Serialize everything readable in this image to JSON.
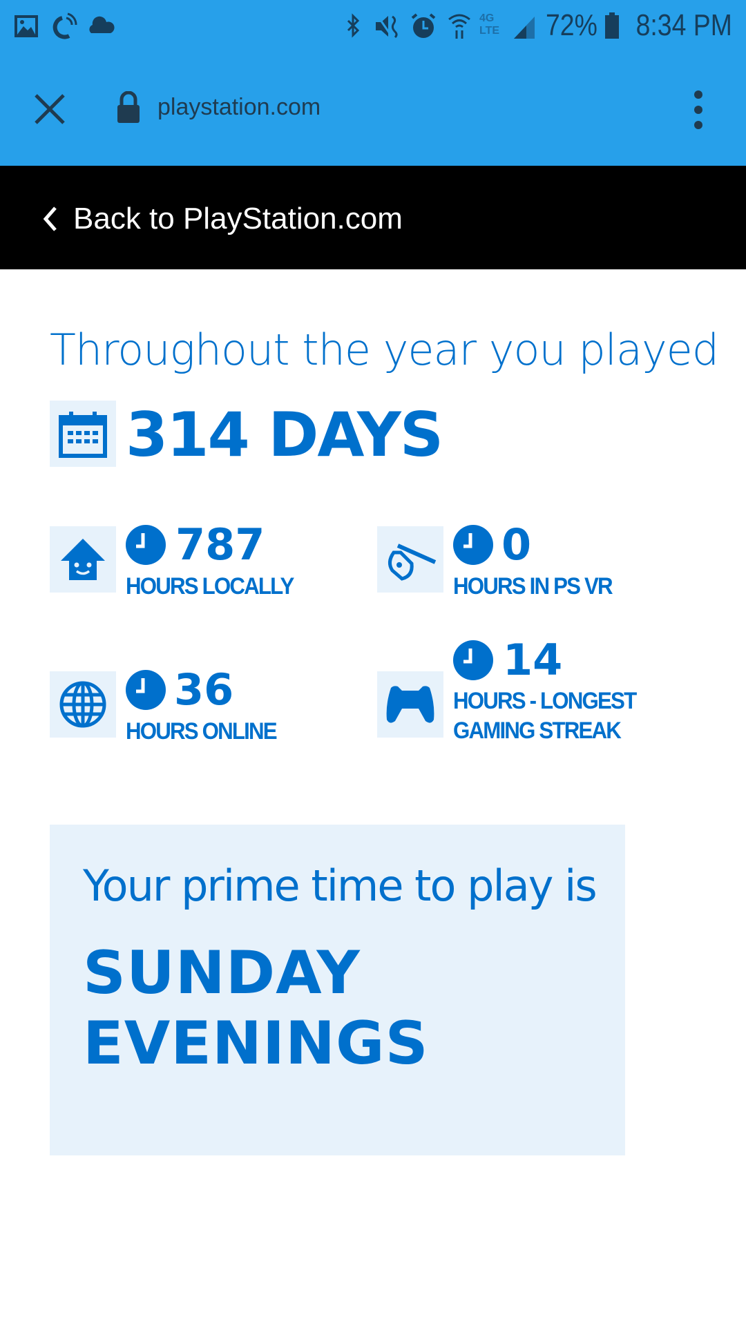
{
  "status_bar": {
    "battery": "72%",
    "time": "8:34 PM",
    "icons": [
      "gallery-icon",
      "sync-icon",
      "cloud-icon",
      "bluetooth-icon",
      "mute-icon",
      "alarm-icon",
      "wifi-icon",
      "lte-icon",
      "signal-icon",
      "battery-icon"
    ]
  },
  "browser": {
    "url": "playstation.com"
  },
  "nav": {
    "back_label": "Back to PlayStation.com"
  },
  "summary": {
    "heading": "Throughout the year you played",
    "days": "314 DAYS"
  },
  "stats": [
    {
      "value": "787",
      "label": "HOURS LOCALLY",
      "icon": "home-icon"
    },
    {
      "value": "0",
      "label": "HOURS IN PS VR",
      "icon": "vr-headset-icon"
    },
    {
      "value": "36",
      "label": "HOURS ONLINE",
      "icon": "globe-icon"
    },
    {
      "value": "14",
      "label": "HOURS - LONGEST GAMING STREAK",
      "icon": "controller-icon"
    }
  ],
  "prime_time": {
    "title": "Your prime time to play is",
    "line1": "SUNDAY",
    "line2": "EVENINGS"
  },
  "colors": {
    "header": "#27a0ea",
    "accent": "#0070cc",
    "tile": "#e7f2fb"
  }
}
